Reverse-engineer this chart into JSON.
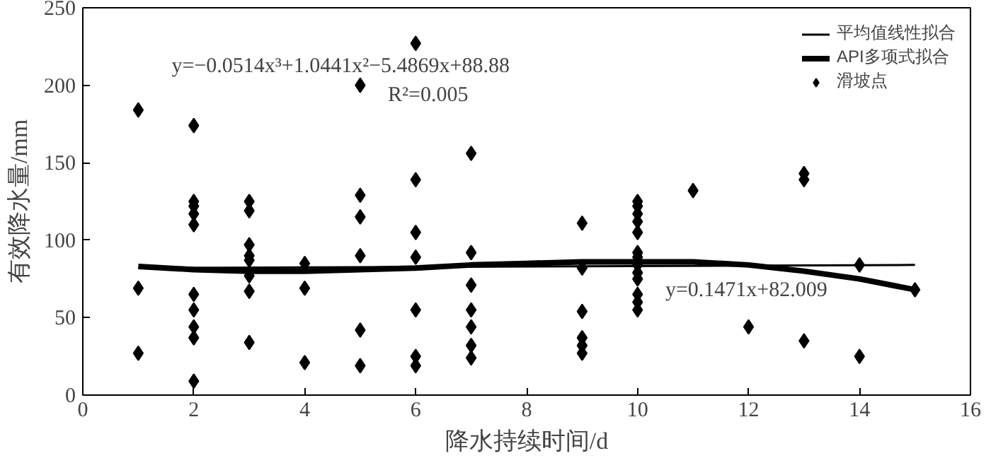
{
  "chart_data": {
    "type": "scatter",
    "xlabel": "降水持续时间/d",
    "ylabel": "有效降水量/mm",
    "xlim": [
      0,
      16
    ],
    "ylim": [
      0,
      250
    ],
    "xticks": [
      0,
      2,
      4,
      6,
      8,
      10,
      12,
      14,
      16
    ],
    "yticks": [
      0,
      50,
      100,
      150,
      200,
      250
    ],
    "grid": false,
    "legend": "top right",
    "annotations": [
      "y=−0.0514x³+1.0441x²−5.4869x+88.88",
      "R²=0.005",
      "y=0.1471x+82.009"
    ],
    "series": [
      {
        "name": "平均值线性拟合",
        "type": "line",
        "color": "#000000",
        "x": [
          1,
          15
        ],
        "values": [
          82,
          84
        ]
      },
      {
        "name": "API多项式拟合",
        "type": "line",
        "color": "#000000",
        "x": [
          1,
          2,
          3,
          4,
          5,
          6,
          7,
          8,
          9,
          10,
          11,
          12,
          13,
          14,
          15
        ],
        "values": [
          83,
          81,
          80,
          80,
          81,
          82,
          84,
          85,
          86,
          86,
          86,
          84,
          80,
          75,
          68
        ]
      },
      {
        "name": "滑坡点",
        "marker": "diamond",
        "color": "#000000",
        "x": [
          1,
          1,
          1,
          2,
          2,
          2,
          2,
          2,
          2,
          2,
          2,
          2,
          2,
          3,
          3,
          3,
          3,
          3,
          3,
          3,
          3,
          4,
          4,
          4,
          5,
          5,
          5,
          5,
          5,
          5,
          6,
          6,
          6,
          6,
          6,
          6,
          6,
          7,
          7,
          7,
          7,
          7,
          7,
          7,
          9,
          9,
          9,
          9,
          9,
          9,
          10,
          10,
          10,
          10,
          10,
          10,
          10,
          10,
          10,
          10,
          10,
          10,
          10,
          11,
          12,
          13,
          13,
          13,
          14,
          14,
          15
        ],
        "values": [
          184,
          69,
          27,
          174,
          125,
          122,
          117,
          110,
          65,
          55,
          44,
          37,
          9,
          125,
          119,
          97,
          90,
          87,
          77,
          67,
          34,
          85,
          69,
          21,
          200,
          129,
          115,
          90,
          42,
          19,
          227,
          139,
          105,
          89,
          55,
          25,
          19,
          156,
          92,
          71,
          55,
          44,
          32,
          24,
          111,
          82,
          54,
          37,
          32,
          27,
          125,
          122,
          117,
          112,
          105,
          92,
          89,
          84,
          79,
          75,
          65,
          60,
          55,
          132,
          44,
          143,
          139,
          35,
          84,
          25,
          68
        ]
      }
    ]
  }
}
